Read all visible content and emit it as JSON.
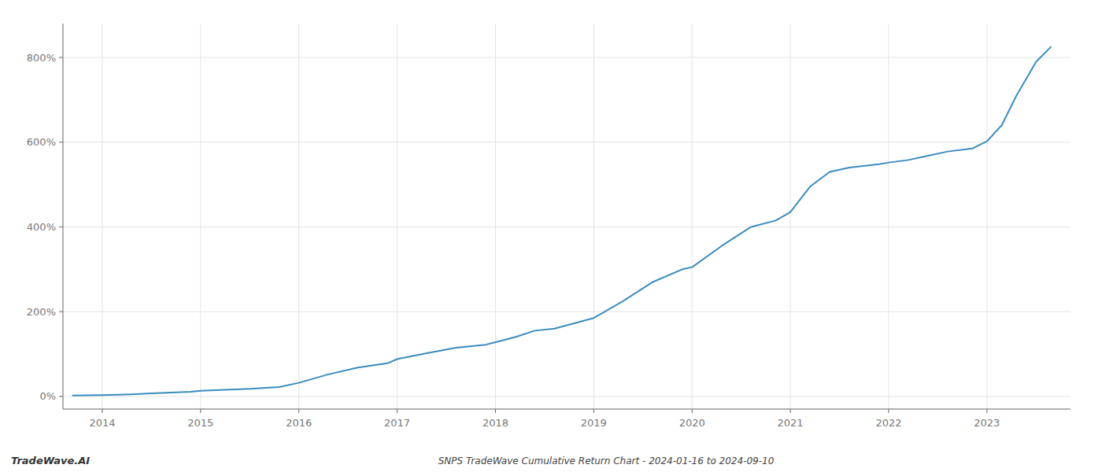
{
  "chart_data": {
    "type": "line",
    "title": "SNPS TradeWave Cumulative Return Chart - 2024-01-16 to 2024-09-10",
    "annotations": [
      "TradeWave.AI"
    ],
    "color": "#3a8bbf",
    "grid": true,
    "x": [
      2013.7,
      2014.0,
      2014.15,
      2014.3,
      2014.5,
      2014.7,
      2014.9,
      2015.0,
      2015.2,
      2015.5,
      2015.8,
      2016.0,
      2016.3,
      2016.6,
      2016.9,
      2017.0,
      2017.3,
      2017.6,
      2017.9,
      2018.0,
      2018.2,
      2018.4,
      2018.6,
      2019.0,
      2019.3,
      2019.6,
      2019.9,
      2020.0,
      2020.3,
      2020.6,
      2020.85,
      2021.0,
      2021.2,
      2021.4,
      2021.6,
      2021.9,
      2022.0,
      2022.2,
      2022.4,
      2022.6,
      2022.85,
      2023.0,
      2023.15,
      2023.3,
      2023.5,
      2023.65
    ],
    "values": [
      2,
      3,
      4,
      5,
      7,
      9,
      11,
      13,
      15,
      18,
      22,
      32,
      52,
      68,
      78,
      88,
      102,
      115,
      122,
      128,
      140,
      155,
      160,
      185,
      225,
      270,
      300,
      305,
      355,
      400,
      415,
      435,
      495,
      530,
      540,
      548,
      552,
      558,
      568,
      578,
      585,
      602,
      640,
      710,
      790,
      825
    ],
    "xlim": [
      2013.6,
      2023.85
    ],
    "ylim": [
      -30,
      880
    ],
    "xticks": [
      2014,
      2015,
      2016,
      2017,
      2018,
      2019,
      2020,
      2021,
      2022,
      2023
    ],
    "yticks": [
      {
        "value": 0,
        "label": "0%"
      },
      {
        "value": 200,
        "label": "200%"
      },
      {
        "value": 400,
        "label": "400%"
      },
      {
        "value": 600,
        "label": "600%"
      },
      {
        "value": 800,
        "label": "800%"
      }
    ]
  }
}
